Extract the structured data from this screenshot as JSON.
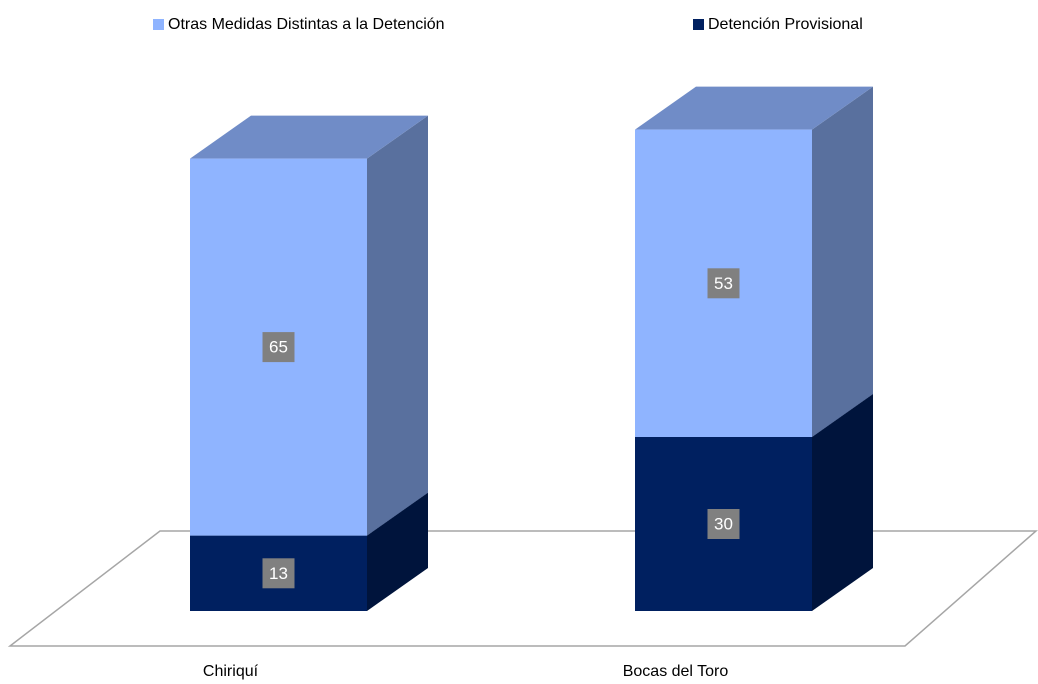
{
  "chart_data": {
    "type": "bar3d_stacked",
    "categories": [
      "Chiriquí",
      "Bocas del Toro"
    ],
    "series": [
      {
        "name": "Detención Provisional",
        "color": "#002060",
        "values": [
          13,
          30
        ]
      },
      {
        "name": "Otras Medidas Distintas a la Detención",
        "color": "#8FB4FF",
        "values": [
          65,
          53
        ]
      }
    ],
    "legend": "top"
  }
}
